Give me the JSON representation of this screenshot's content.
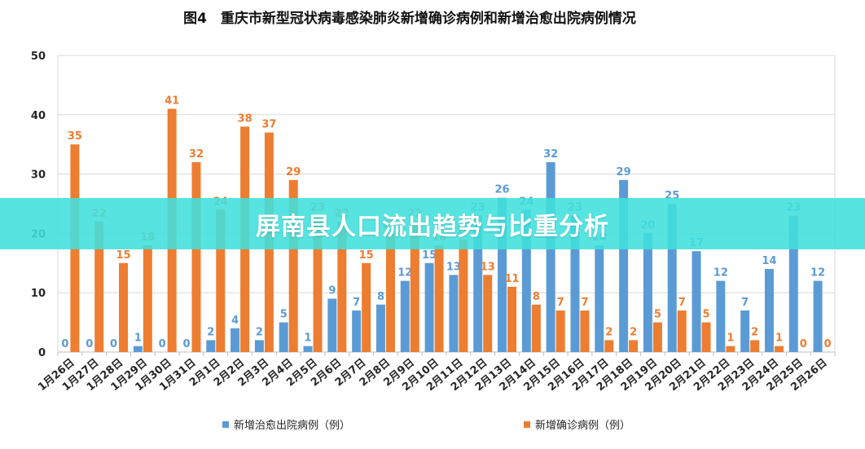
{
  "chart_data": {
    "type": "bar",
    "title": "图4　重庆市新型冠状病毒感染肺炎新增确诊病例和新增治愈出院病例情况",
    "xlabel": "",
    "ylabel": "",
    "ylim": [
      0,
      50
    ],
    "yticks": [
      0,
      10,
      20,
      30,
      40,
      50
    ],
    "categories": [
      "1月26日",
      "1月27日",
      "1月28日",
      "1月29日",
      "1月30日",
      "1月31日",
      "2月1日",
      "2月2日",
      "2月3日",
      "2月4日",
      "2月5日",
      "2月6日",
      "2月7日",
      "2月8日",
      "2月9日",
      "2月10日",
      "2月11日",
      "2月12日",
      "2月13日",
      "2月14日",
      "2月15日",
      "2月16日",
      "2月17日",
      "2月18日",
      "2月19日",
      "2月20日",
      "2月21日",
      "2月22日",
      "2月23日",
      "2月24日",
      "2月25日",
      "2月26日"
    ],
    "series": [
      {
        "name": "新增治愈出院病例（例）",
        "color": "#5B9BD5",
        "values": [
          0,
          0,
          0,
          1,
          0,
          0,
          2,
          4,
          2,
          5,
          1,
          9,
          7,
          8,
          12,
          15,
          13,
          23,
          26,
          24,
          32,
          23,
          18,
          29,
          20,
          25,
          17,
          12,
          7,
          14,
          23,
          12
        ]
      },
      {
        "name": "新增确诊病例（例）",
        "color": "#ED7D31",
        "values": [
          35,
          22,
          15,
          18,
          41,
          32,
          24,
          38,
          37,
          29,
          23,
          22,
          15,
          20,
          22,
          18,
          19,
          13,
          11,
          8,
          7,
          7,
          2,
          2,
          5,
          7,
          5,
          1,
          2,
          1,
          0,
          0
        ]
      }
    ],
    "legend_position": "bottom",
    "grid": true
  },
  "overlay": {
    "banner_text": "屏南县人口流出趋势与比重分析"
  }
}
